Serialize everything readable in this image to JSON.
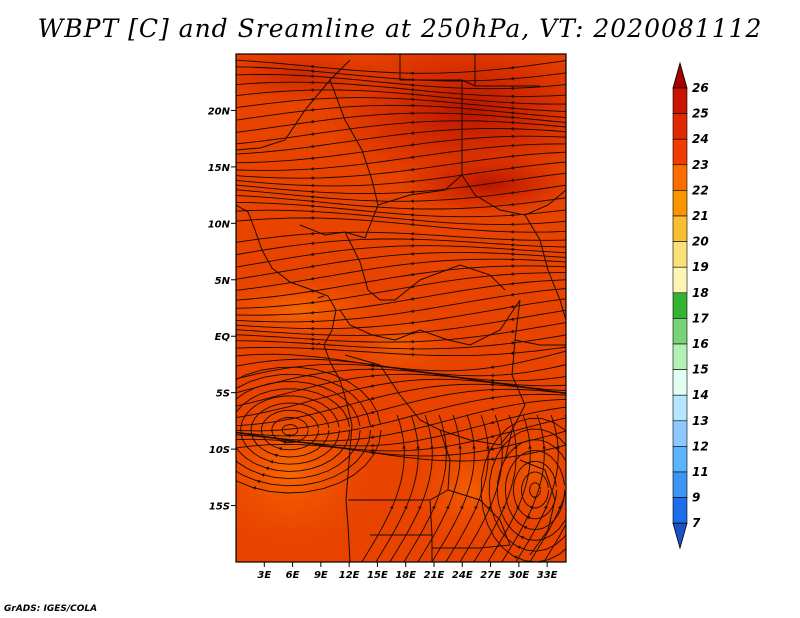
{
  "title": "WBPT [C] and Sreamline at 250hPa, VT: 2020081112",
  "credit": "GrADS: IGES/COLA",
  "map": {
    "lon_range": [
      0,
      35
    ],
    "lat_range": [
      -20,
      25
    ],
    "lat_ticks": [
      {
        "value": 20,
        "label": "20N"
      },
      {
        "value": 15,
        "label": "15N"
      },
      {
        "value": 10,
        "label": "10N"
      },
      {
        "value": 5,
        "label": "5N"
      },
      {
        "value": 0,
        "label": "EQ"
      },
      {
        "value": -5,
        "label": "5S"
      },
      {
        "value": -10,
        "label": "10S"
      },
      {
        "value": -15,
        "label": "15S"
      }
    ],
    "lon_ticks": [
      {
        "value": 3,
        "label": "3E"
      },
      {
        "value": 6,
        "label": "6E"
      },
      {
        "value": 9,
        "label": "9E"
      },
      {
        "value": 12,
        "label": "12E"
      },
      {
        "value": 15,
        "label": "15E"
      },
      {
        "value": 18,
        "label": "18E"
      },
      {
        "value": 21,
        "label": "21E"
      },
      {
        "value": 24,
        "label": "24E"
      },
      {
        "value": 27,
        "label": "27E"
      },
      {
        "value": 30,
        "label": "30E"
      },
      {
        "value": 33,
        "label": "33E"
      }
    ]
  },
  "colorbar": {
    "levels": [
      {
        "label": "26",
        "color": "#a50000"
      },
      {
        "label": "25",
        "color": "#c81400"
      },
      {
        "label": "24",
        "color": "#e12800"
      },
      {
        "label": "23",
        "color": "#f03c00"
      },
      {
        "label": "22",
        "color": "#fa6e00"
      },
      {
        "label": "21",
        "color": "#fa9600"
      },
      {
        "label": "20",
        "color": "#fabe32"
      },
      {
        "label": "19",
        "color": "#fce178"
      },
      {
        "label": "18",
        "color": "#fdf5b4"
      },
      {
        "label": "17",
        "color": "#32b432"
      },
      {
        "label": "16",
        "color": "#78d278"
      },
      {
        "label": "15",
        "color": "#b4f0b4"
      },
      {
        "label": "14",
        "color": "#e1fff5"
      },
      {
        "label": "13",
        "color": "#b4e6ff"
      },
      {
        "label": "12",
        "color": "#8cc8ff"
      },
      {
        "label": "11",
        "color": "#5ab4ff"
      },
      {
        "label": "9",
        "color": "#3c96f5"
      },
      {
        "label": "7",
        "color": "#1e6eeb"
      }
    ],
    "bottom_arrow_color": "#1e50c8"
  }
}
